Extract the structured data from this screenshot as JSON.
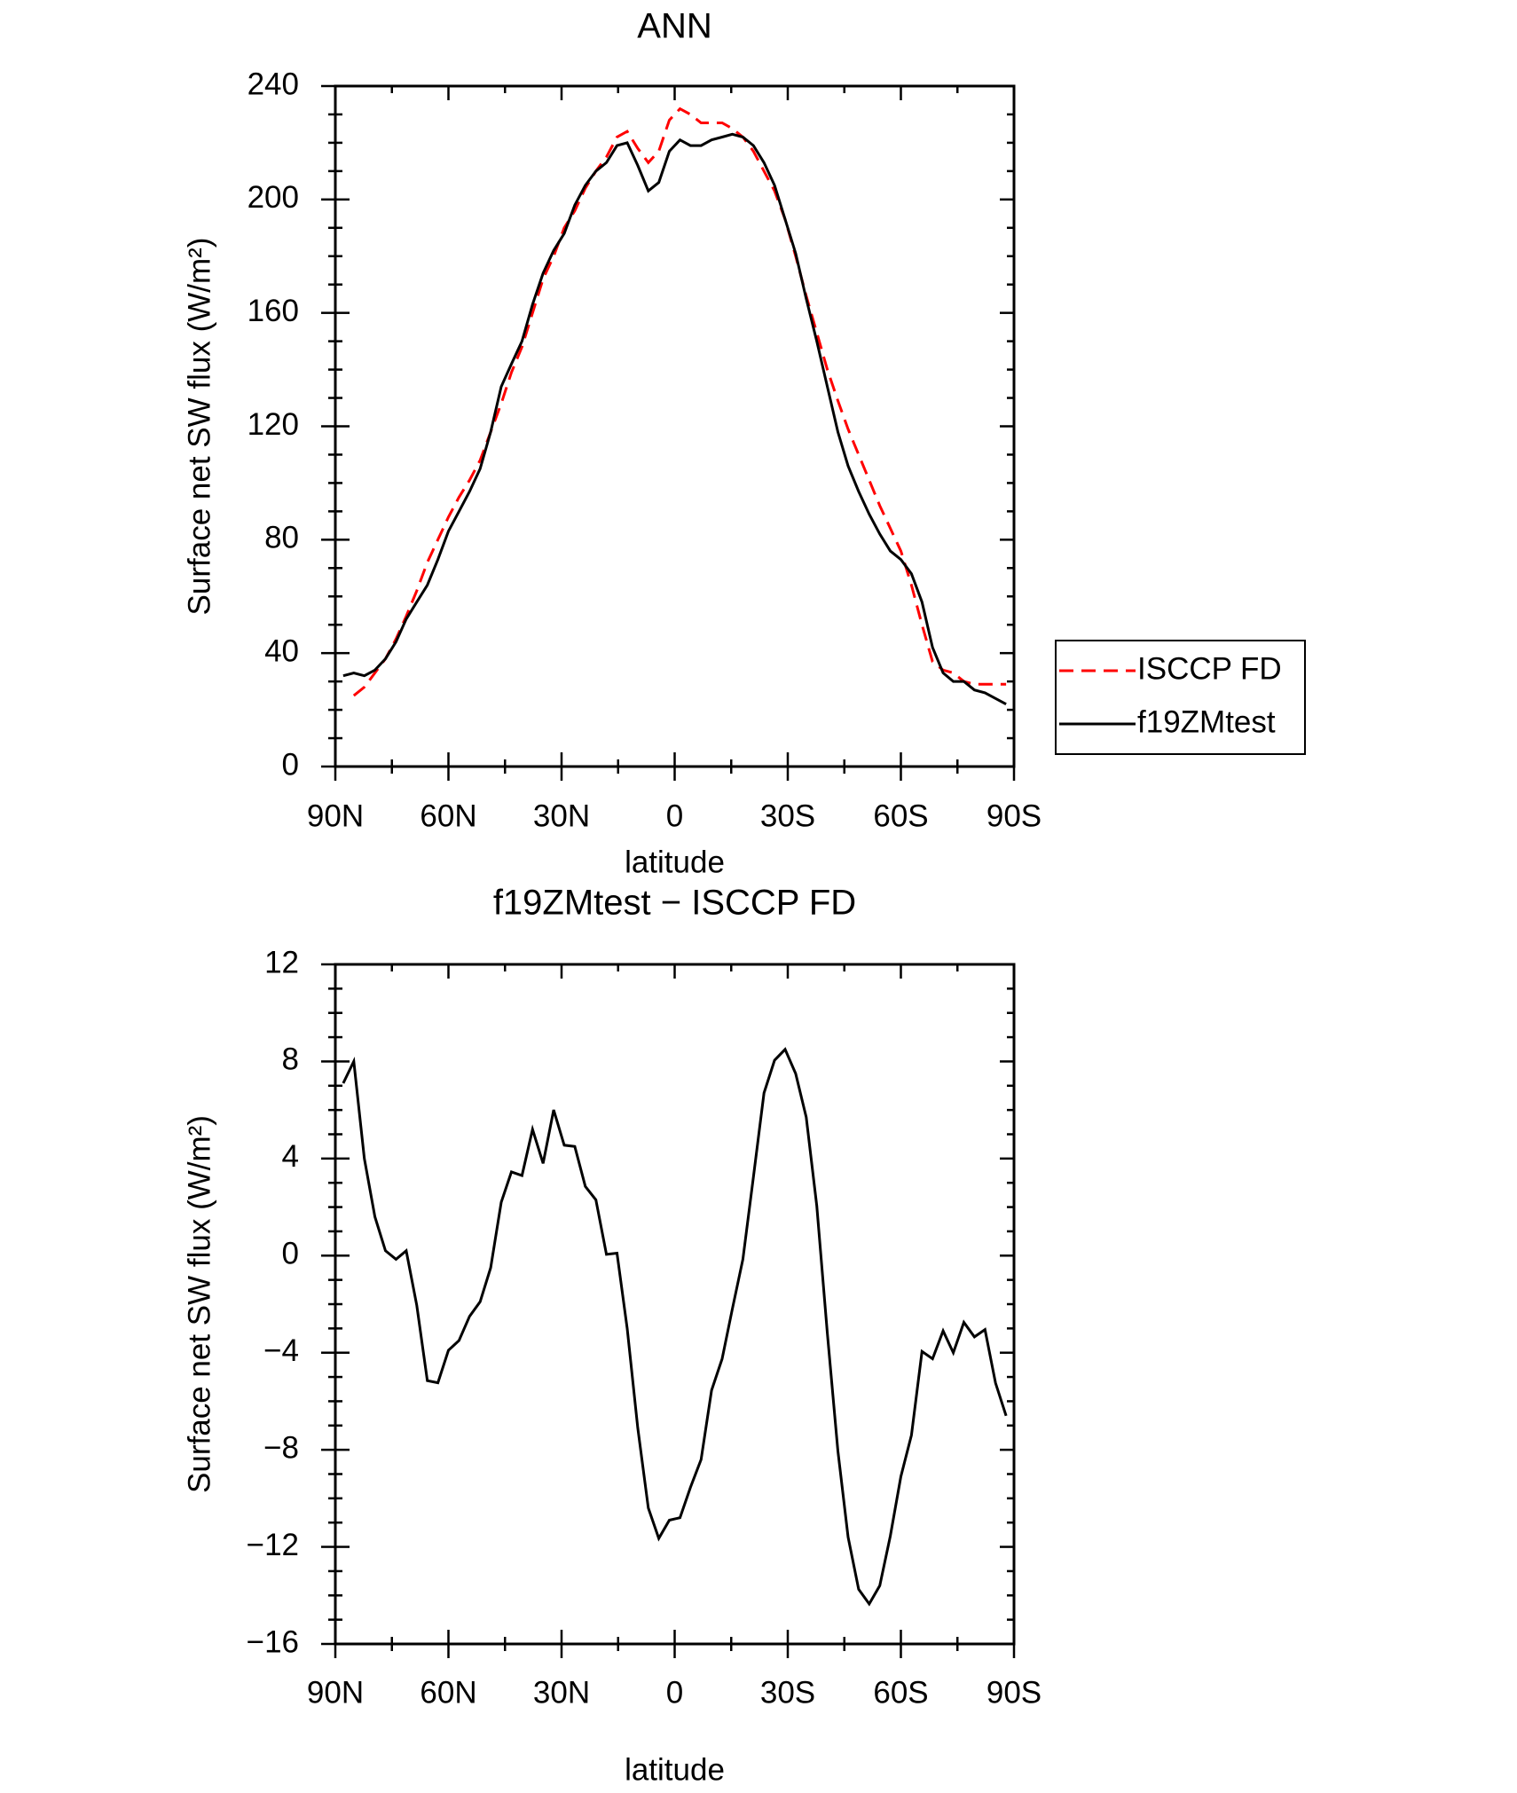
{
  "chart_data": [
    {
      "type": "line",
      "title": "ANN",
      "xlabel": "latitude",
      "ylabel": "Surface net SW flux (W/m²)",
      "x": [
        87.9,
        85.1,
        82.3,
        79.5,
        76.7,
        73.9,
        71.2,
        68.4,
        65.6,
        62.8,
        60.0,
        57.2,
        54.4,
        51.6,
        48.8,
        46.0,
        43.3,
        40.5,
        37.7,
        34.9,
        32.1,
        29.3,
        26.5,
        23.7,
        20.9,
        18.1,
        15.3,
        12.6,
        9.8,
        7.0,
        4.2,
        1.4,
        -1.4,
        -4.2,
        -7.0,
        -9.8,
        -12.6,
        -15.3,
        -18.1,
        -20.9,
        -23.7,
        -26.5,
        -29.3,
        -32.1,
        -34.9,
        -37.7,
        -40.5,
        -43.3,
        -46.0,
        -48.8,
        -51.6,
        -54.4,
        -57.2,
        -60.0,
        -62.8,
        -65.6,
        -68.4,
        -71.2,
        -73.9,
        -76.7,
        -79.5,
        -82.3,
        -85.1,
        -87.9
      ],
      "series": [
        {
          "name": "ISCCP FD",
          "color": "#ff0000",
          "dash": true,
          "values": [
            null,
            25,
            28,
            33,
            38,
            45,
            53,
            62,
            72,
            80,
            88,
            95,
            101,
            108,
            118,
            128,
            139,
            148,
            160,
            172,
            180,
            190,
            196,
            204,
            210,
            215,
            222,
            224,
            218,
            213,
            217,
            228,
            232,
            230,
            227,
            227,
            227,
            225,
            222,
            217,
            210,
            203,
            193,
            180,
            166,
            153,
            140,
            129,
            119,
            110,
            101,
            92,
            84,
            76,
            64,
            50,
            37,
            34,
            33,
            30,
            29,
            29,
            29,
            29
          ]
        },
        {
          "name": "f19ZMtest",
          "color": "#000000",
          "dash": false,
          "values": [
            32,
            33,
            32,
            34,
            38,
            44,
            52,
            58,
            64,
            73,
            83,
            90,
            97,
            105,
            118,
            134,
            142,
            150,
            163,
            174,
            182,
            188,
            198,
            205,
            210,
            213,
            219,
            220,
            212,
            203,
            206,
            217,
            221,
            219,
            219,
            221,
            222,
            223,
            222,
            219,
            213,
            205,
            193,
            181,
            165,
            150,
            134,
            118,
            106,
            97,
            89,
            82,
            76,
            73,
            68,
            58,
            42,
            33,
            30,
            30,
            27,
            26,
            24,
            22
          ]
        }
      ],
      "xlim": [
        90,
        -90
      ],
      "xticks": [
        {
          "value": 90,
          "label": "90N"
        },
        {
          "value": 60,
          "label": "60N"
        },
        {
          "value": 30,
          "label": "30N"
        },
        0,
        {
          "value": -30,
          "label": "30S"
        },
        {
          "value": -60,
          "label": "60S"
        },
        {
          "value": -90,
          "label": "90S"
        }
      ],
      "xminorticks": [
        75,
        45,
        15,
        -15,
        -45,
        -75
      ],
      "ylim": [
        0,
        240
      ],
      "yticks": [
        0,
        40,
        80,
        120,
        160,
        200,
        240
      ],
      "yminorticks": [
        10,
        20,
        30,
        50,
        60,
        70,
        90,
        100,
        110,
        130,
        140,
        150,
        170,
        180,
        190,
        210,
        220,
        230
      ],
      "legend": "right"
    },
    {
      "type": "line",
      "title": "f19ZMtest − ISCCP FD",
      "xlabel": "latitude",
      "ylabel": "Surface net SW flux (W/m²)",
      "x": [
        87.9,
        85.1,
        82.3,
        79.5,
        76.7,
        73.9,
        71.2,
        68.4,
        65.6,
        62.8,
        60.0,
        57.2,
        54.4,
        51.6,
        48.8,
        46.0,
        43.3,
        40.5,
        37.7,
        34.9,
        32.1,
        29.3,
        26.5,
        23.7,
        20.9,
        18.1,
        15.3,
        12.6,
        9.8,
        7.0,
        4.2,
        1.4,
        -1.4,
        -4.2,
        -7.0,
        -9.8,
        -12.6,
        -15.3,
        -18.1,
        -20.9,
        -23.7,
        -26.5,
        -29.3,
        -32.1,
        -34.9,
        -37.7,
        -40.5,
        -43.3,
        -46.0,
        -48.8,
        -51.6,
        -54.4,
        -57.2,
        -60.0,
        -62.8,
        -65.6,
        -68.4,
        -71.2,
        -73.9,
        -76.7,
        -79.5,
        -82.3,
        -85.1,
        -87.9
      ],
      "series": [
        {
          "color": "#000000",
          "dash": false,
          "values": [
            7.1,
            8.0,
            4.0,
            1.6,
            0.2,
            -0.15,
            0.2,
            -2.05,
            -5.15,
            -5.24,
            -3.9,
            -3.5,
            -2.5,
            -1.9,
            -0.5,
            2.2,
            3.45,
            3.3,
            5.2,
            3.8,
            6.0,
            4.55,
            4.5,
            2.85,
            2.3,
            0.05,
            0.1,
            -3.0,
            -7.1,
            -10.4,
            -11.65,
            -10.9,
            -10.8,
            -9.55,
            -8.4,
            -5.55,
            -4.25,
            -2.2,
            -0.15,
            3.25,
            6.7,
            8.05,
            8.5,
            7.5,
            5.7,
            2.05,
            -3.2,
            -8.05,
            -11.6,
            -13.75,
            -14.35,
            -13.6,
            -11.55,
            -9.1,
            -7.4,
            -3.95,
            -4.25,
            -3.1,
            -4.0,
            -2.75,
            -3.35,
            -3.05,
            -5.25,
            -6.6
          ]
        }
      ],
      "xlim": [
        90,
        -90
      ],
      "xticks": [
        {
          "value": 90,
          "label": "90N"
        },
        {
          "value": 60,
          "label": "60N"
        },
        {
          "value": 30,
          "label": "30N"
        },
        0,
        {
          "value": -30,
          "label": "30S"
        },
        {
          "value": -60,
          "label": "60S"
        },
        {
          "value": -90,
          "label": "90S"
        }
      ],
      "xminorticks": [
        75,
        45,
        15,
        -15,
        -45,
        -75
      ],
      "ylim": [
        -16,
        12
      ],
      "yticks": [
        {
          "value": -16,
          "label": "−16"
        },
        {
          "value": -12,
          "label": "−12"
        },
        {
          "value": -8,
          "label": "−8"
        },
        {
          "value": -4,
          "label": "−4"
        },
        0,
        4,
        8,
        12
      ],
      "yminorticks": [
        -15,
        -14,
        -13,
        -11,
        -10,
        -9,
        -7,
        -6,
        -5,
        -3,
        -2,
        -1,
        1,
        2,
        3,
        5,
        6,
        7,
        9,
        10,
        11
      ]
    }
  ]
}
